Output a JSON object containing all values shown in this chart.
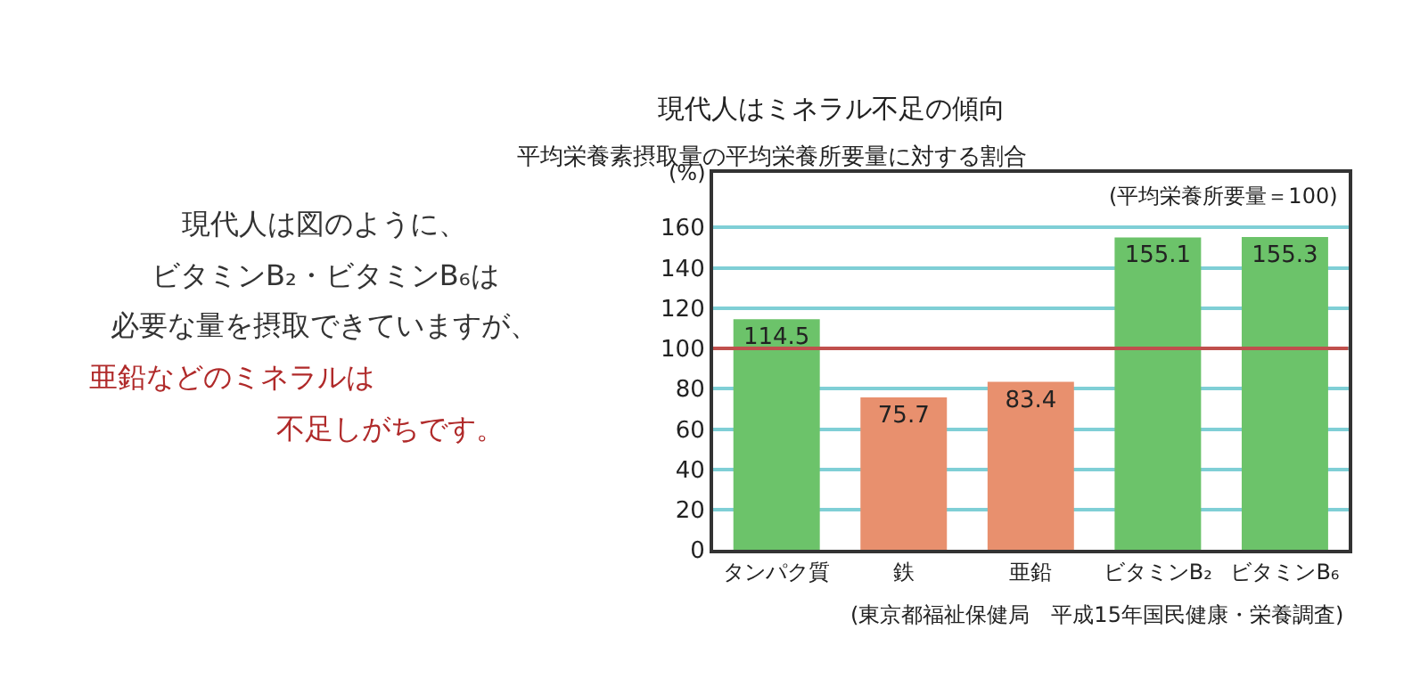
{
  "chart_data": {
    "type": "bar",
    "title": "現代人はミネラル不足の傾向",
    "subtitle": "平均栄養素摂取量の平均栄養所要量に対する割合",
    "ylabel": "(%)",
    "categories": [
      "タンパク質",
      "鉄",
      "亜鉛",
      "ビタミンB₂",
      "ビタミンB₆"
    ],
    "values": [
      114.5,
      75.7,
      83.4,
      155.1,
      155.3
    ],
    "colors": [
      "#6cc36a",
      "#e8906e",
      "#e8906e",
      "#6cc36a",
      "#6cc36a"
    ],
    "ylim": [
      0,
      187
    ],
    "yticks": [
      0,
      20,
      40,
      60,
      80,
      100,
      120,
      140,
      160
    ],
    "grid": "y",
    "data_labels": true,
    "ref_lines": [
      {
        "axis": "y",
        "value": 100,
        "color": "#c0504d"
      }
    ],
    "annotations": [
      "(平均栄養所要量＝100)",
      "(東京都福祉保健局　平成15年国民健康・栄養調査)",
      "現代人は図のように、",
      "ビタミンB₂・ビタミンB₆は",
      "必要な量を摂取できていますが、",
      "亜鉛などのミネラルは",
      "不足しがちです。"
    ]
  }
}
